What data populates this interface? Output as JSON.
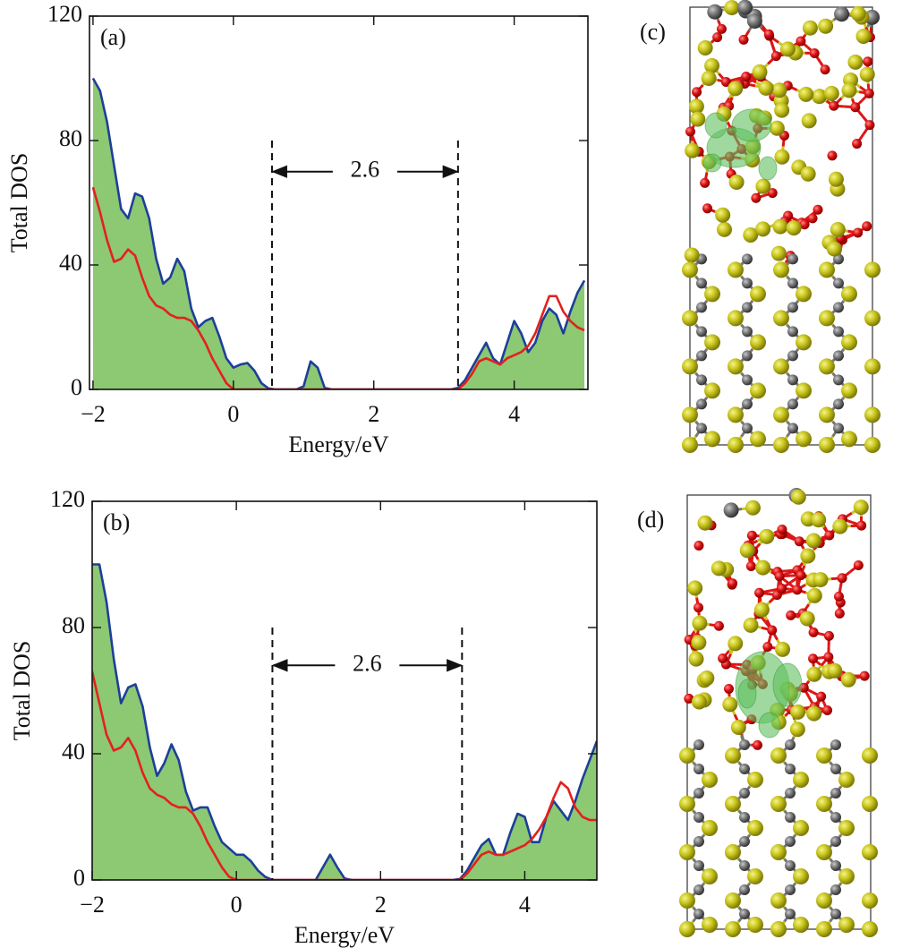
{
  "chart_data": [
    {
      "type": "area-line",
      "panel": "(a)",
      "x_label": "Energy/eV",
      "y_label": "Total DOS",
      "xlim": [
        -2.05,
        5.05
      ],
      "ylim": [
        0,
        120
      ],
      "xticks": [
        {
          "value": -2,
          "label": "−2"
        },
        0,
        2,
        4
      ],
      "yticks": [
        0,
        40,
        80,
        120
      ],
      "x": [
        -2.0,
        -1.9,
        -1.8,
        -1.7,
        -1.6,
        -1.5,
        -1.4,
        -1.3,
        -1.2,
        -1.1,
        -1.0,
        -0.9,
        -0.8,
        -0.7,
        -0.6,
        -0.5,
        -0.4,
        -0.3,
        -0.2,
        -0.1,
        0.0,
        0.1,
        0.2,
        0.3,
        0.4,
        0.5,
        0.6,
        0.7,
        0.8,
        0.9,
        1.0,
        1.1,
        1.2,
        1.3,
        1.4,
        1.5,
        1.6,
        1.7,
        1.8,
        1.9,
        2.0,
        2.1,
        2.2,
        2.3,
        2.4,
        2.5,
        2.6,
        2.7,
        2.8,
        2.9,
        3.0,
        3.1,
        3.2,
        3.3,
        3.4,
        3.5,
        3.6,
        3.7,
        3.8,
        3.9,
        4.0,
        4.1,
        4.2,
        4.3,
        4.4,
        4.5,
        4.6,
        4.7,
        4.8,
        4.9,
        5.0
      ],
      "series": [
        {
          "color": "#1d3f99",
          "fill": "#8dc873",
          "values": [
            100,
            96,
            86,
            72,
            58,
            55,
            63,
            62,
            55,
            42,
            34,
            36,
            42,
            38,
            26,
            20,
            22,
            23,
            17,
            10,
            7,
            8,
            8.5,
            6,
            2,
            0.3,
            0,
            0,
            0,
            0,
            1,
            9,
            7,
            0.5,
            0,
            0,
            0,
            0,
            0,
            0,
            0,
            0,
            0,
            0,
            0,
            0,
            0,
            0,
            0,
            0,
            0,
            0,
            0.5,
            3,
            7,
            11,
            15,
            10,
            8,
            15,
            22,
            18,
            12,
            15,
            22,
            26,
            24,
            18,
            25,
            31,
            35
          ]
        },
        {
          "color": "#e3211c",
          "values": [
            65,
            57,
            48,
            41,
            42,
            45,
            43,
            36,
            30,
            27,
            26,
            24,
            23,
            23,
            22,
            19,
            15,
            10,
            6,
            2,
            0,
            0,
            0,
            0,
            0,
            0,
            0,
            0,
            0,
            0,
            0,
            0,
            0,
            0,
            0,
            0,
            0,
            0,
            0,
            0,
            0,
            0,
            0,
            0,
            0,
            0,
            0,
            0,
            0,
            0,
            0,
            0,
            0,
            2,
            5,
            9,
            10,
            9,
            8,
            10,
            11,
            12,
            14,
            18,
            24,
            30,
            30,
            25,
            22,
            20,
            19
          ]
        }
      ],
      "gap": {
        "label": "2.6",
        "edges": [
          0.55,
          3.2
        ],
        "y": 70,
        "top": 80
      }
    },
    {
      "type": "area-line",
      "panel": "(b)",
      "x_label": "Energy/eV",
      "y_label": "Total DOS",
      "xlim": [
        -2.0,
        5.0
      ],
      "ylim": [
        0,
        120
      ],
      "xticks": [
        {
          "value": -2,
          "label": "−2"
        },
        0,
        2,
        4
      ],
      "yticks": [
        0,
        40,
        80,
        120
      ],
      "x": [
        -2.0,
        -1.9,
        -1.8,
        -1.7,
        -1.6,
        -1.5,
        -1.4,
        -1.3,
        -1.2,
        -1.1,
        -1.0,
        -0.9,
        -0.8,
        -0.7,
        -0.6,
        -0.5,
        -0.4,
        -0.3,
        -0.2,
        -0.1,
        0.0,
        0.1,
        0.2,
        0.3,
        0.4,
        0.5,
        0.6,
        0.7,
        0.8,
        0.9,
        1.0,
        1.1,
        1.2,
        1.3,
        1.4,
        1.5,
        1.6,
        1.7,
        1.8,
        1.9,
        2.0,
        2.1,
        2.2,
        2.3,
        2.4,
        2.5,
        2.6,
        2.7,
        2.8,
        2.9,
        3.0,
        3.1,
        3.2,
        3.3,
        3.4,
        3.5,
        3.6,
        3.7,
        3.8,
        3.9,
        4.0,
        4.1,
        4.2,
        4.3,
        4.4,
        4.5,
        4.6,
        4.7,
        4.8,
        4.9,
        5.0
      ],
      "series": [
        {
          "color": "#1d3f99",
          "fill": "#8dc873",
          "values": [
            100,
            100,
            88,
            70,
            56,
            61,
            62,
            55,
            42,
            33,
            37,
            43,
            38,
            28,
            22,
            23,
            23,
            17,
            12,
            10,
            8,
            8,
            6,
            3,
            1,
            0,
            0,
            0,
            0,
            0,
            0,
            0,
            4,
            8,
            4,
            0.5,
            0,
            0,
            0,
            0,
            0,
            0,
            0,
            0,
            0,
            0,
            0,
            0,
            0,
            0,
            0,
            0.3,
            3,
            7,
            11,
            13,
            8,
            8,
            15,
            21,
            20,
            12,
            12,
            20,
            25,
            22,
            19,
            25,
            32,
            38,
            44
          ]
        },
        {
          "color": "#e3211c",
          "values": [
            66,
            56,
            46,
            41,
            42,
            45,
            41,
            34,
            29,
            27,
            26,
            24,
            23,
            23,
            21,
            17,
            12,
            8,
            4,
            1,
            0,
            0,
            0,
            0,
            0,
            0,
            0,
            0,
            0,
            0,
            0,
            0,
            0,
            0,
            0,
            0,
            0,
            0,
            0,
            0,
            0,
            0,
            0,
            0,
            0,
            0,
            0,
            0,
            0,
            0,
            0,
            0,
            2,
            5,
            8,
            9,
            8,
            8,
            9,
            10,
            11,
            13,
            16,
            20,
            26,
            31,
            29,
            23,
            20,
            19,
            19
          ]
        }
      ],
      "gap": {
        "label": "2.6",
        "edges": [
          0.5,
          3.13
        ],
        "y": 68,
        "top": 80
      }
    }
  ],
  "structures": [
    {
      "panel": "(c)"
    },
    {
      "panel": "(d)"
    }
  ]
}
